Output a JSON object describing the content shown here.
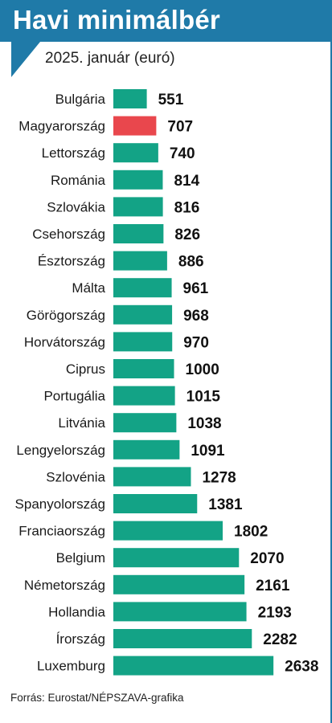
{
  "header": {
    "title": "Havi minimálbér"
  },
  "subtitle": "2025. január (euró)",
  "footer": {
    "source": "Forrás: Eurostat/NÉPSZAVA-grafika"
  },
  "colors": {
    "accent": "#1f7aa8",
    "bar": "#13a386",
    "highlight": "#e9474d"
  },
  "chart_data": {
    "type": "bar",
    "orientation": "horizontal",
    "title": "Havi minimálbér",
    "subtitle": "2025. január (euró)",
    "highlight": "Magyarország",
    "categories": [
      "Bulgária",
      "Magyarország",
      "Lettország",
      "Románia",
      "Szlovákia",
      "Csehország",
      "Észtország",
      "Málta",
      "Görögország",
      "Horvátország",
      "Ciprus",
      "Portugália",
      "Litvánia",
      "Lengyelország",
      "Szlovénia",
      "Spanyolország",
      "Franciaország",
      "Belgium",
      "Németország",
      "Hollandia",
      "Írország",
      "Luxemburg"
    ],
    "values": [
      551,
      707,
      740,
      814,
      816,
      826,
      886,
      961,
      968,
      970,
      1000,
      1015,
      1038,
      1091,
      1278,
      1381,
      1802,
      2070,
      2161,
      2193,
      2282,
      2638
    ],
    "value_labels": [
      "551",
      "707",
      "740",
      "814",
      "816",
      "826",
      "886",
      "961",
      "968",
      "970",
      "1000",
      "1015",
      "1038",
      "1091",
      "1278",
      "1381",
      "1802",
      "2070",
      "2161",
      "2193",
      "2282",
      "2638"
    ],
    "grid": false,
    "legend": "none"
  }
}
